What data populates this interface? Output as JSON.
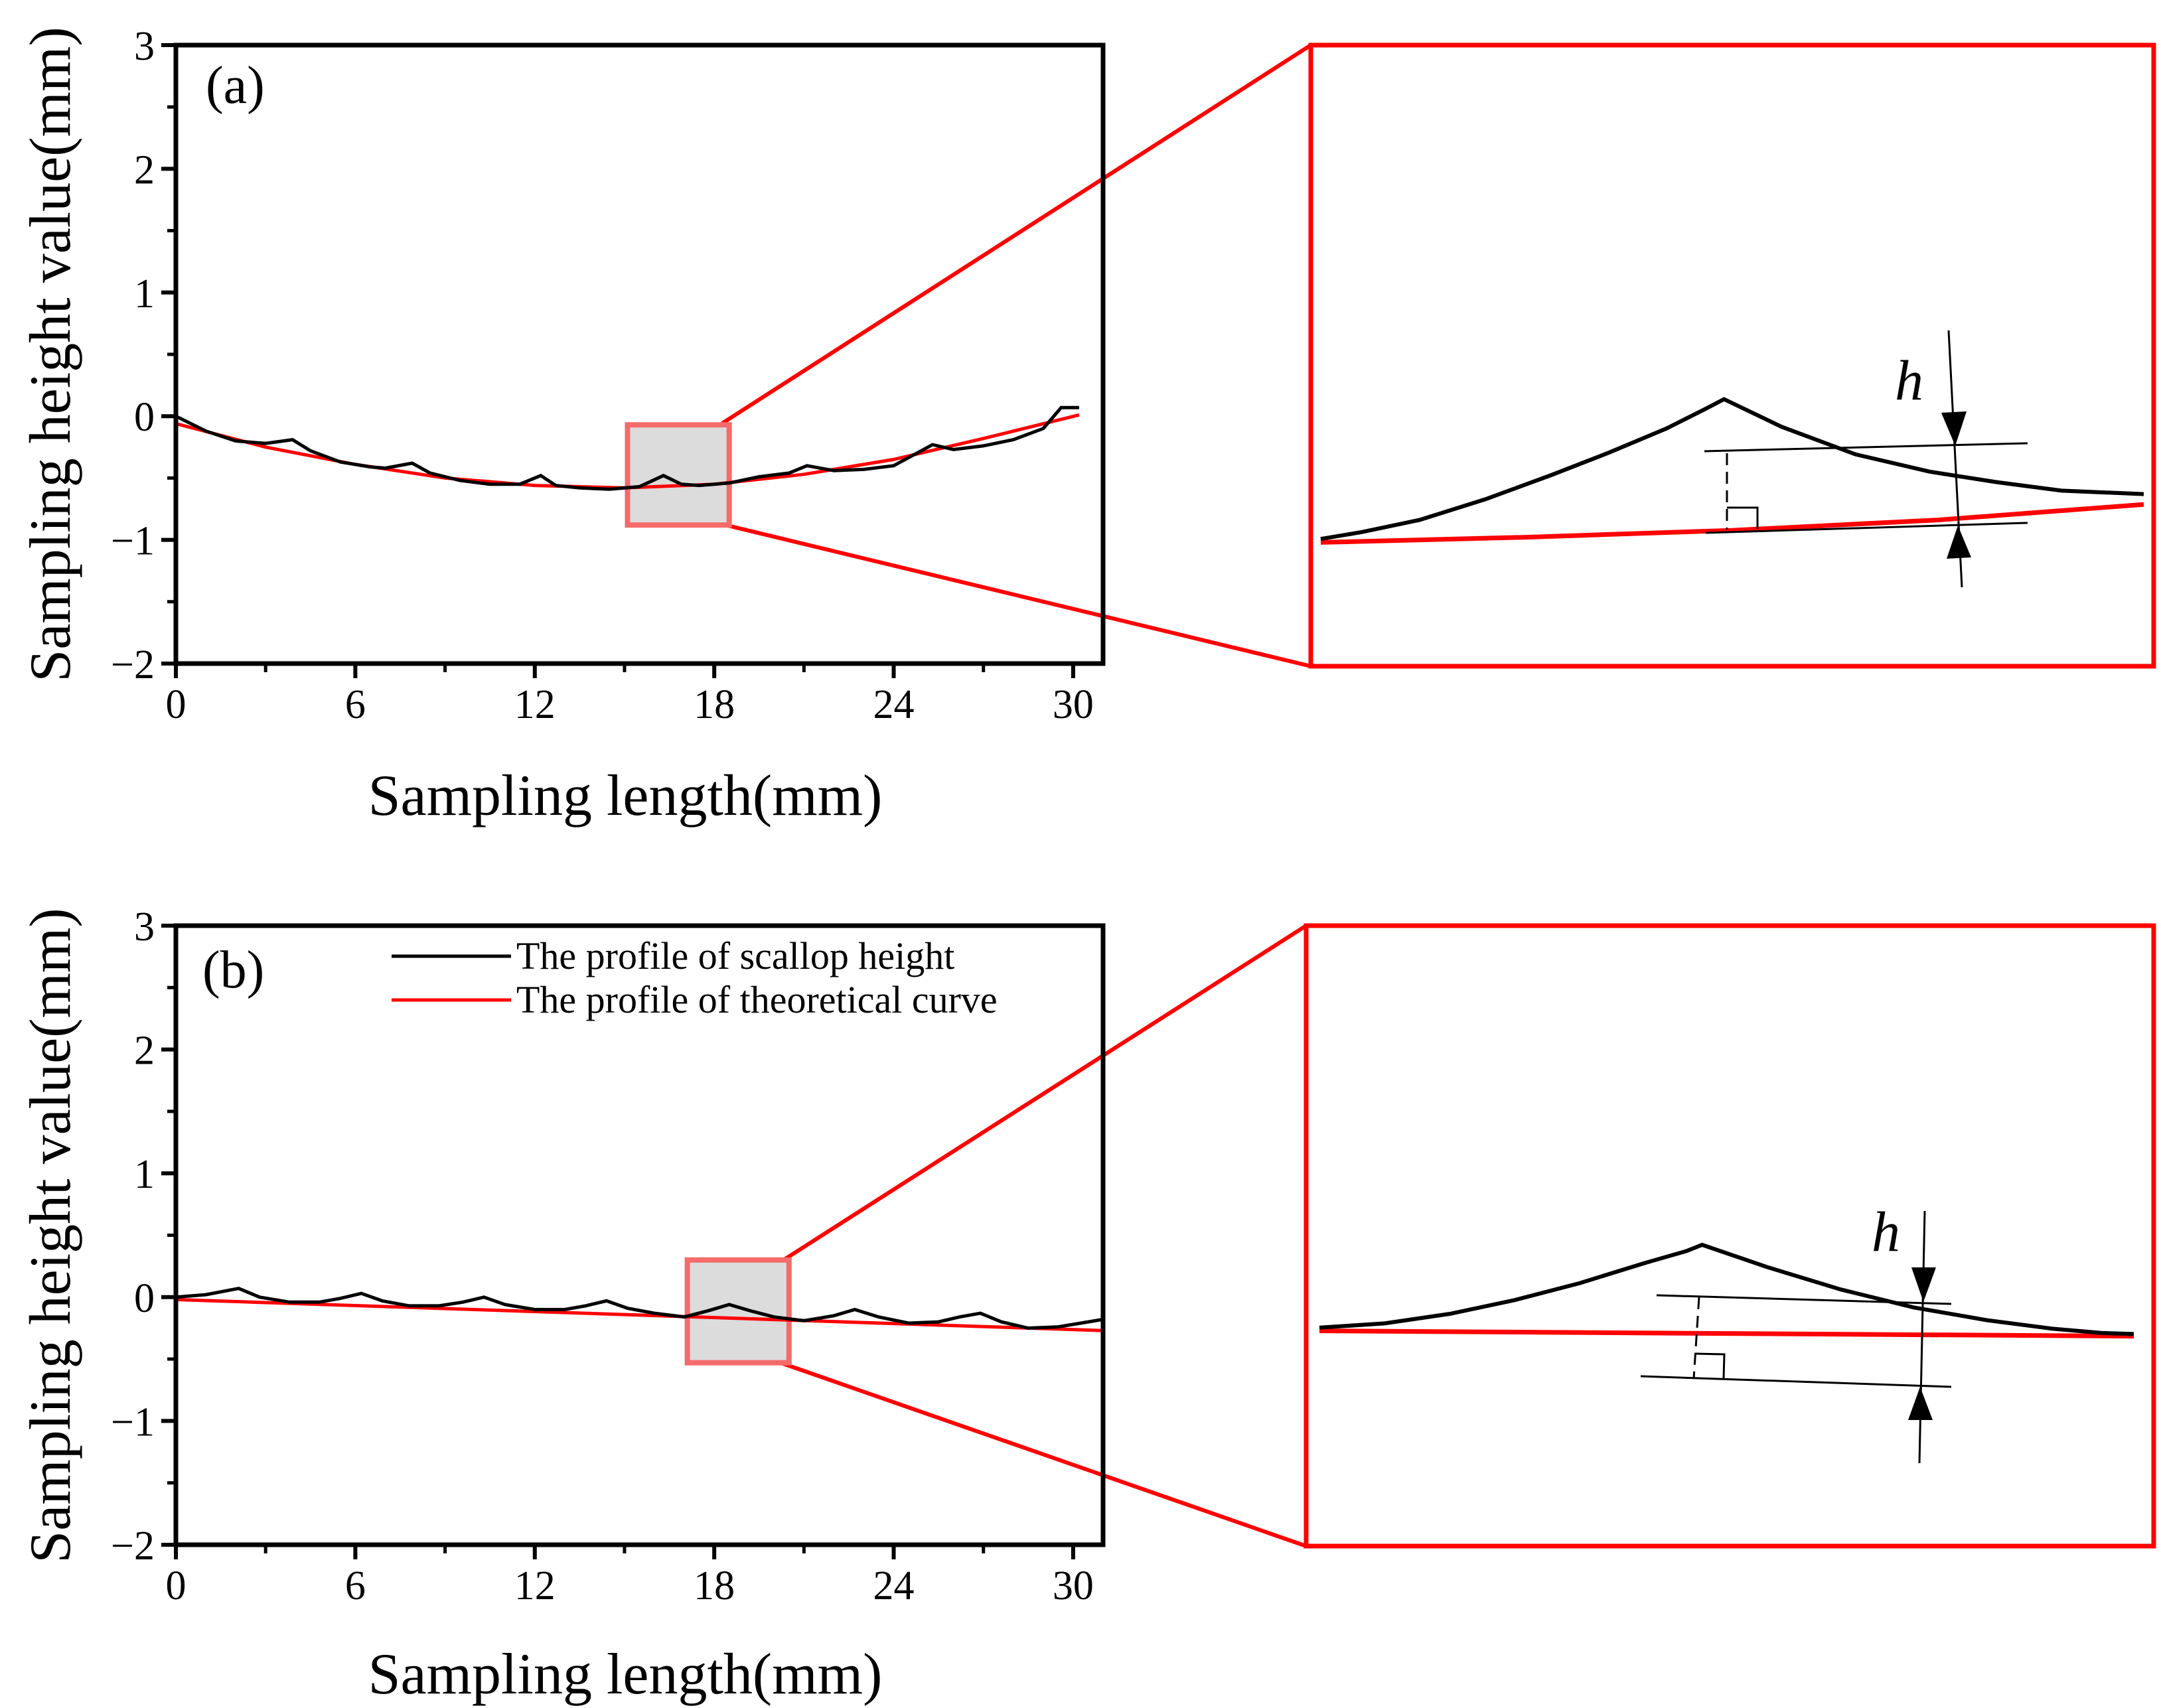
{
  "chart_data": [
    {
      "panel": "(a)",
      "type": "line",
      "xlabel": "Sampling length(mm)",
      "ylabel": "Sampling height value(mm)",
      "xlim": [
        0,
        31
      ],
      "ylim": [
        -2,
        3
      ],
      "xticks": [
        0,
        6,
        12,
        18,
        24,
        30
      ],
      "yticks": [
        -2,
        -1,
        0,
        1,
        2,
        3
      ],
      "series": [
        {
          "name": "The profile of scallop height",
          "color": "#000000",
          "x": [
            0,
            1,
            2,
            3,
            3.9,
            4.5,
            5.5,
            6.5,
            7.0,
            7.9,
            8.5,
            9.5,
            10.5,
            11.5,
            12.2,
            12.7,
            13.5,
            14.5,
            15.5,
            16.3,
            16.9,
            17.5,
            18.5,
            19.5,
            20.5,
            21.1,
            22,
            23,
            24,
            25.3,
            26,
            27,
            28,
            29,
            29.6,
            30.2
          ],
          "y": [
            0.0,
            -0.12,
            -0.2,
            -0.22,
            -0.19,
            -0.28,
            -0.37,
            -0.41,
            -0.42,
            -0.38,
            -0.46,
            -0.52,
            -0.55,
            -0.55,
            -0.48,
            -0.56,
            -0.58,
            -0.59,
            -0.57,
            -0.48,
            -0.55,
            -0.56,
            -0.54,
            -0.49,
            -0.46,
            -0.4,
            -0.44,
            -0.43,
            -0.4,
            -0.23,
            -0.27,
            -0.24,
            -0.19,
            -0.1,
            0.07,
            0.07
          ]
        },
        {
          "name": "The profile of theoretical curve",
          "color": "#ff0000",
          "x": [
            0,
            3,
            6,
            9,
            12,
            15,
            18,
            21,
            24,
            27,
            30.2
          ],
          "y": [
            -0.06,
            -0.25,
            -0.39,
            -0.5,
            -0.56,
            -0.58,
            -0.55,
            -0.47,
            -0.35,
            -0.18,
            0.01
          ]
        }
      ],
      "zoom_box": {
        "x": [
          15.1,
          18.5
        ],
        "y": [
          -0.88,
          -0.07
        ]
      },
      "inset": {
        "annotation": "h",
        "scallop": [
          [
            0,
            -0.97
          ],
          [
            0.05,
            -0.93
          ],
          [
            0.12,
            -0.86
          ],
          [
            0.2,
            -0.74
          ],
          [
            0.28,
            -0.6
          ],
          [
            0.35,
            -0.47
          ],
          [
            0.42,
            -0.33
          ],
          [
            0.47,
            -0.21
          ],
          [
            0.49,
            -0.16
          ],
          [
            0.56,
            -0.32
          ],
          [
            0.65,
            -0.48
          ],
          [
            0.74,
            -0.58
          ],
          [
            0.82,
            -0.64
          ],
          [
            0.9,
            -0.69
          ],
          [
            1.0,
            -0.71
          ]
        ],
        "theory": [
          [
            0,
            -0.99
          ],
          [
            0.25,
            -0.96
          ],
          [
            0.5,
            -0.92
          ],
          [
            0.75,
            -0.86
          ],
          [
            1.0,
            -0.77
          ]
        ]
      }
    },
    {
      "panel": "(b)",
      "type": "line",
      "xlabel": "Sampling length(mm)",
      "ylabel": "Sampling height value(mm)",
      "xlim": [
        0,
        31
      ],
      "ylim": [
        -2,
        3
      ],
      "xticks": [
        0,
        6,
        12,
        18,
        24,
        30
      ],
      "yticks": [
        -2,
        -1,
        0,
        1,
        2,
        3
      ],
      "legend": [
        "The profile of scallop height",
        "The profile of theoretical curve"
      ],
      "series": [
        {
          "name": "The profile of scallop height",
          "color": "#000000",
          "x": [
            0,
            1,
            2.1,
            2.8,
            3.8,
            4.8,
            5.5,
            6.2,
            6.9,
            7.8,
            8.8,
            9.6,
            10.3,
            11.0,
            12.0,
            13.0,
            13.7,
            14.4,
            15.1,
            16.0,
            17.0,
            17.8,
            18.5,
            19.2,
            20.0,
            21.0,
            22.0,
            22.7,
            23.5,
            24.5,
            25.5,
            26.2,
            26.9,
            27.6,
            28.5,
            29.5,
            30.5,
            31
          ],
          "y": [
            0.0,
            0.02,
            0.07,
            0.0,
            -0.04,
            -0.04,
            -0.01,
            0.03,
            -0.03,
            -0.07,
            -0.07,
            -0.04,
            0.0,
            -0.06,
            -0.1,
            -0.1,
            -0.07,
            -0.03,
            -0.09,
            -0.13,
            -0.16,
            -0.11,
            -0.06,
            -0.11,
            -0.16,
            -0.19,
            -0.15,
            -0.1,
            -0.16,
            -0.21,
            -0.2,
            -0.16,
            -0.13,
            -0.2,
            -0.25,
            -0.24,
            -0.2,
            -0.18
          ]
        },
        {
          "name": "The profile of theoretical curve",
          "color": "#ff0000",
          "x": [
            0,
            31
          ],
          "y": [
            -0.02,
            -0.27
          ]
        }
      ],
      "zoom_box": {
        "x": [
          17.1,
          20.5
        ],
        "y": [
          -0.53,
          0.3
        ]
      },
      "inset": {
        "annotation": "h",
        "scallop": [
          [
            0,
            -0.88
          ],
          [
            0.08,
            -0.84
          ],
          [
            0.16,
            -0.75
          ],
          [
            0.24,
            -0.62
          ],
          [
            0.32,
            -0.46
          ],
          [
            0.4,
            -0.27
          ],
          [
            0.45,
            -0.16
          ],
          [
            0.47,
            -0.1
          ],
          [
            0.55,
            -0.31
          ],
          [
            0.64,
            -0.52
          ],
          [
            0.73,
            -0.69
          ],
          [
            0.82,
            -0.81
          ],
          [
            0.9,
            -0.89
          ],
          [
            0.96,
            -0.93
          ],
          [
            1.0,
            -0.94
          ]
        ],
        "theory": [
          [
            0,
            -0.91
          ],
          [
            1.0,
            -0.96
          ]
        ]
      }
    }
  ]
}
